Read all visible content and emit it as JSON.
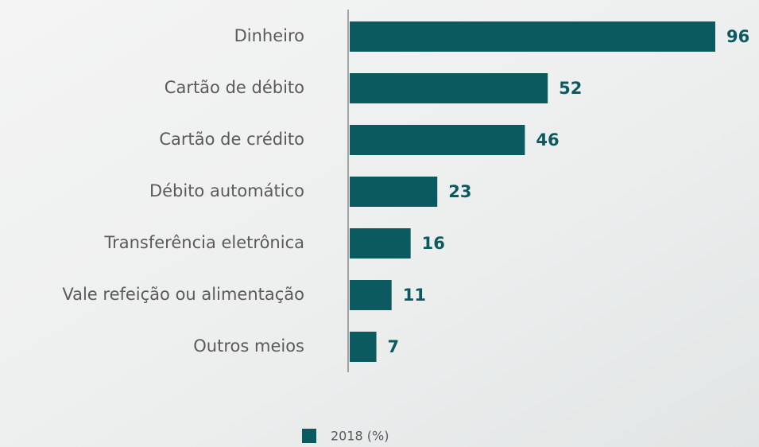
{
  "chart_data": {
    "type": "bar",
    "orientation": "horizontal",
    "categories": [
      "Dinheiro",
      "Cartão de débito",
      "Cartão de crédito",
      "Débito automático",
      "Transferência eletrônica",
      "Vale refeição ou alimentação",
      "Outros meios"
    ],
    "series": [
      {
        "name": "2018 (%)",
        "color": "#0b5a60",
        "values": [
          96,
          52,
          46,
          23,
          16,
          11,
          7
        ]
      }
    ]
  }
}
